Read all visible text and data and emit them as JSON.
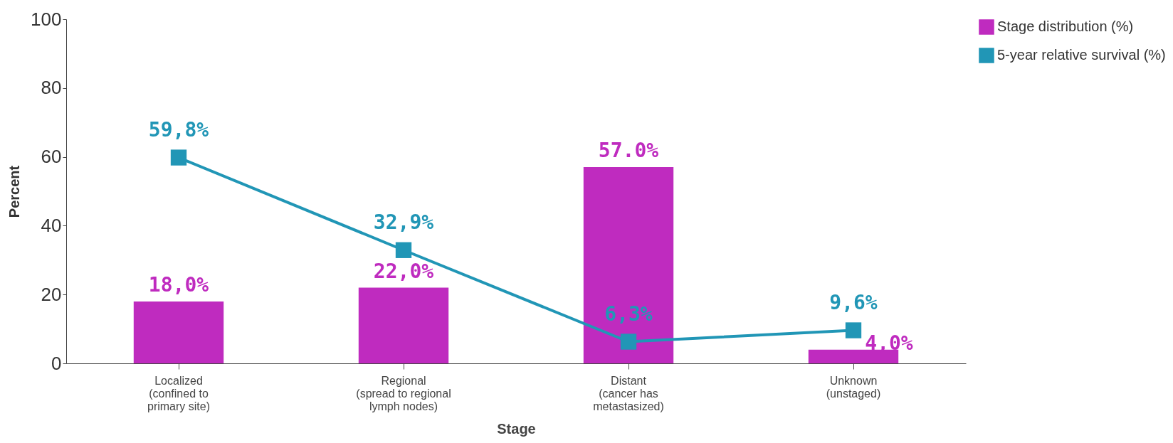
{
  "chart_data": {
    "type": "bar",
    "xlabel": "Stage",
    "ylabel": "Percent",
    "categories": [
      "Localized\n(confined to\nprimary site)",
      "Regional\n(spread to regional\nlymph nodes)",
      "Distant\n(cancer has\nmetastasized)",
      "Unknown\n(unstaged)"
    ],
    "series": [
      {
        "name": "Stage distribution (%)",
        "color": "#bf2bbf",
        "values": [
          18.0,
          22.0,
          57.0,
          4.0
        ],
        "value_labels": [
          "18,0%",
          "22,0%",
          "57.0%",
          "4,0%"
        ]
      },
      {
        "name": "5-year relative survival (%)",
        "type": "line",
        "color": "#2196b6",
        "values": [
          59.8,
          32.9,
          6.3,
          9.6
        ],
        "value_labels": [
          "59,8%",
          "32,9%",
          "6,3%",
          "9,6%"
        ]
      }
    ],
    "ylim": [
      0,
      100
    ],
    "yticks": [
      0,
      20,
      40,
      60,
      80,
      100
    ],
    "legend": "right",
    "marker": "square",
    "line_style": "solid"
  }
}
